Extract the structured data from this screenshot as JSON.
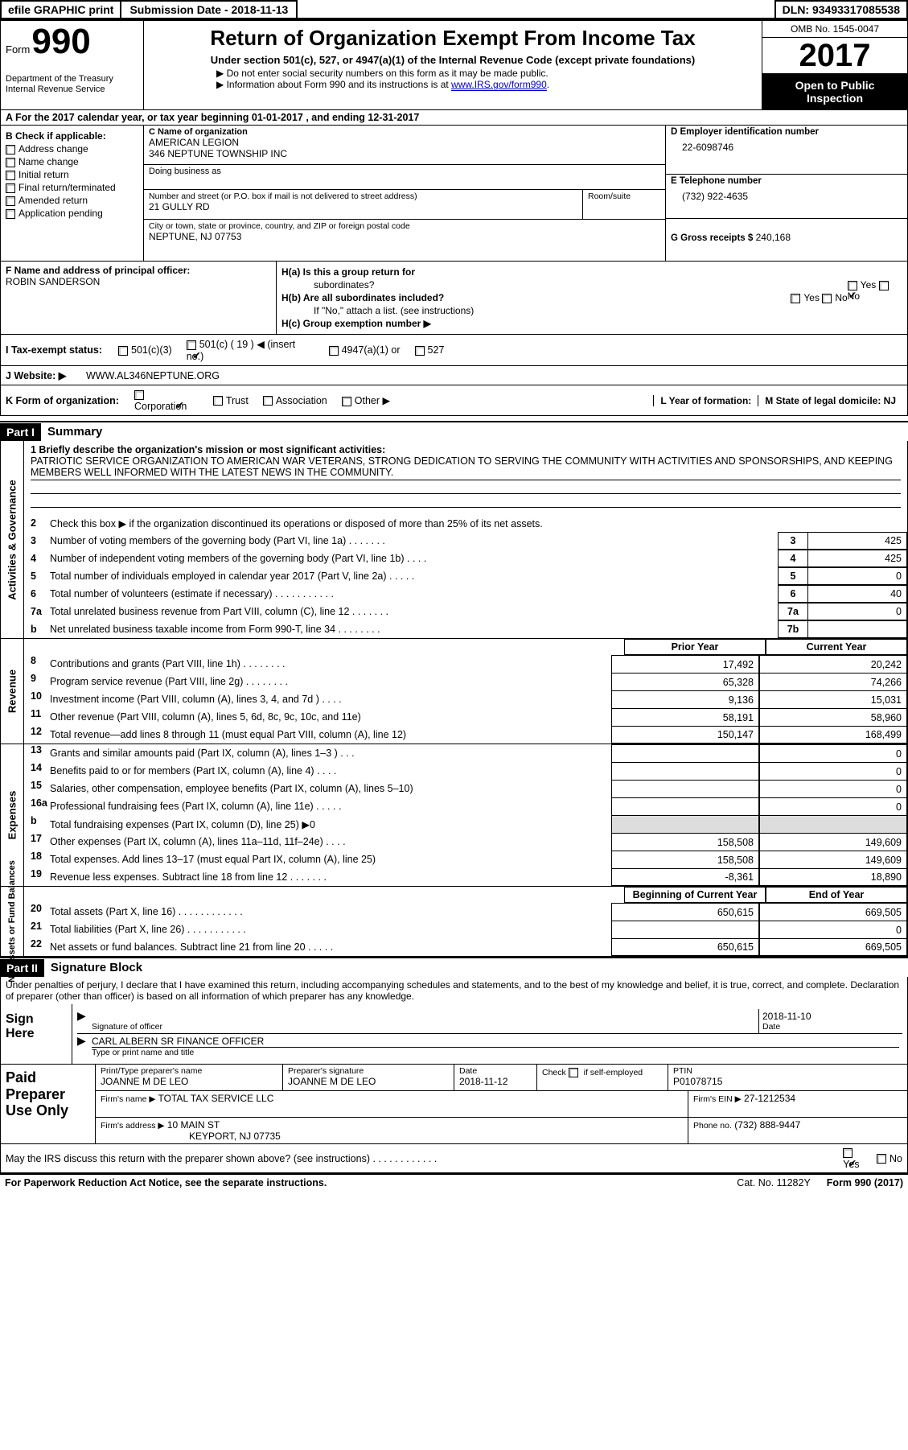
{
  "topbar": {
    "efile_btn": "efile GRAPHIC print",
    "submission": "Submission Date - 2018-11-13",
    "dln": "DLN: 93493317085538"
  },
  "header": {
    "form_word": "Form",
    "form_num": "990",
    "dept1": "Department of the Treasury",
    "dept2": "Internal Revenue Service",
    "title": "Return of Organization Exempt From Income Tax",
    "sub1": "Under section 501(c), 527, or 4947(a)(1) of the Internal Revenue Code (except private foundations)",
    "arrow1": "Do not enter social security numbers on this form as it may be made public.",
    "arrow2_pre": "Information about Form 990 and its instructions is at ",
    "arrow2_link": "www.IRS.gov/form990",
    "arrow2_post": ".",
    "omb": "OMB No. 1545-0047",
    "year": "2017",
    "open1": "Open to Public",
    "open2": "Inspection"
  },
  "line_a": "A  For the 2017 calendar year, or tax year beginning 01-01-2017    , and ending 12-31-2017",
  "section_b": {
    "heading": "B Check if applicable:",
    "opts": [
      "Address change",
      "Name change",
      "Initial return",
      "Final return/terminated",
      "Amended return",
      "Application pending"
    ]
  },
  "section_c": {
    "name_lbl": "C Name of organization",
    "name1": "AMERICAN LEGION",
    "name2": "346 NEPTUNE TOWNSHIP INC",
    "dba_lbl": "Doing business as",
    "street_lbl": "Number and street (or P.O. box if mail is not delivered to street address)",
    "room_lbl": "Room/suite",
    "street": "21 GULLY RD",
    "city_lbl": "City or town, state or province, country, and ZIP or foreign postal code",
    "city": "NEPTUNE, NJ  07753"
  },
  "section_d": {
    "ein_lbl": "D Employer identification number",
    "ein": "22-6098746",
    "tel_lbl": "E Telephone number",
    "tel": "(732) 922-4635",
    "gross_lbl": "G Gross receipts $",
    "gross": "240,168"
  },
  "section_f": {
    "lbl": "F Name and address of principal officer:",
    "name": "ROBIN SANDERSON"
  },
  "section_h": {
    "ha": "H(a)  Is this a group return for",
    "ha2": "subordinates?",
    "hb": "H(b)  Are all subordinates included?",
    "hb_note": "If \"No,\" attach a list. (see instructions)",
    "hc": "H(c)  Group exemption number ▶",
    "yes": "Yes",
    "no": "No"
  },
  "tax_status": {
    "lbl": "I   Tax-exempt status:",
    "o1": "501(c)(3)",
    "o2": "501(c) ( 19 ) ◀ (insert no.)",
    "o3": "4947(a)(1) or",
    "o4": "527"
  },
  "website": {
    "lbl": "J   Website: ▶",
    "val": "WWW.AL346NEPTUNE.ORG"
  },
  "korg": {
    "lbl": "K Form of organization:",
    "o1": "Corporation",
    "o2": "Trust",
    "o3": "Association",
    "o4": "Other ▶",
    "l_lbl": "L Year of formation:",
    "m_lbl": "M State of legal domicile: NJ"
  },
  "part1": {
    "label": "Part I",
    "title": "Summary",
    "side_act": "Activities & Governance",
    "side_rev": "Revenue",
    "side_exp": "Expenses",
    "side_net": "Net Assets or\nFund Balances",
    "l1_lbl": "1   Briefly describe the organization's mission or most significant activities:",
    "l1_text": "PATRIOTIC SERVICE ORGANIZATION TO AMERICAN WAR VETERANS, STRONG DEDICATION TO SERVING THE COMMUNITY WITH ACTIVITIES AND SPONSORSHIPS, AND KEEPING MEMBERS WELL INFORMED WITH THE LATEST NEWS IN THE COMMUNITY.",
    "l2": "Check this box ▶       if the organization discontinued its operations or disposed of more than 25% of its net assets.",
    "prior_hdr": "Prior Year",
    "current_hdr": "Current Year",
    "boy_hdr": "Beginning of Current Year",
    "eoy_hdr": "End of Year",
    "gov_lines": [
      {
        "n": "3",
        "t": "Number of voting members of the governing body (Part VI, line 1a)   .    .    .    .    .    .    .",
        "c": "3",
        "v": "425"
      },
      {
        "n": "4",
        "t": "Number of independent voting members of the governing body (Part VI, line 1b)   .    .    .    .",
        "c": "4",
        "v": "425"
      },
      {
        "n": "5",
        "t": "Total number of individuals employed in calendar year 2017 (Part V, line 2a)   .    .    .    .    .",
        "c": "5",
        "v": "0"
      },
      {
        "n": "6",
        "t": "Total number of volunteers (estimate if necessary)   .    .    .    .    .    .    .    .    .    .    .",
        "c": "6",
        "v": "40"
      },
      {
        "n": "7a",
        "t": "Total unrelated business revenue from Part VIII, column (C), line 12   .    .    .    .    .    .    .",
        "c": "7a",
        "v": "0"
      },
      {
        "n": "b",
        "t": "Net unrelated business taxable income from Form 990-T, line 34   .    .    .    .    .    .    .    .",
        "c": "7b",
        "v": ""
      }
    ],
    "rev_lines": [
      {
        "n": "8",
        "t": "Contributions and grants (Part VIII, line 1h)   .    .    .    .    .    .    .    .",
        "p": "17,492",
        "c": "20,242"
      },
      {
        "n": "9",
        "t": "Program service revenue (Part VIII, line 2g)   .    .    .    .    .    .    .    .",
        "p": "65,328",
        "c": "74,266"
      },
      {
        "n": "10",
        "t": "Investment income (Part VIII, column (A), lines 3, 4, and 7d )   .    .    .    .",
        "p": "9,136",
        "c": "15,031"
      },
      {
        "n": "11",
        "t": "Other revenue (Part VIII, column (A), lines 5, 6d, 8c, 9c, 10c, and 11e)",
        "p": "58,191",
        "c": "58,960"
      },
      {
        "n": "12",
        "t": "Total revenue—add lines 8 through 11 (must equal Part VIII, column (A), line 12)",
        "p": "150,147",
        "c": "168,499"
      }
    ],
    "exp_lines": [
      {
        "n": "13",
        "t": "Grants and similar amounts paid (Part IX, column (A), lines 1–3 )   .    .    .",
        "p": "",
        "c": "0"
      },
      {
        "n": "14",
        "t": "Benefits paid to or for members (Part IX, column (A), line 4)   .    .    .    .",
        "p": "",
        "c": "0"
      },
      {
        "n": "15",
        "t": "Salaries, other compensation, employee benefits (Part IX, column (A), lines 5–10)",
        "p": "",
        "c": "0"
      },
      {
        "n": "16a",
        "t": "Professional fundraising fees (Part IX, column (A), line 11e)   .    .    .    .    .",
        "p": "",
        "c": "0"
      },
      {
        "n": "b",
        "t": "Total fundraising expenses (Part IX, column (D), line 25) ▶0",
        "p": "__SHADE__",
        "c": "__SHADE__"
      },
      {
        "n": "17",
        "t": "Other expenses (Part IX, column (A), lines 11a–11d, 11f–24e)   .    .    .    .",
        "p": "158,508",
        "c": "149,609"
      },
      {
        "n": "18",
        "t": "Total expenses. Add lines 13–17 (must equal Part IX, column (A), line 25)",
        "p": "158,508",
        "c": "149,609"
      },
      {
        "n": "19",
        "t": "Revenue less expenses. Subtract line 18 from line 12 .    .    .    .    .    .    .",
        "p": "-8,361",
        "c": "18,890"
      }
    ],
    "net_lines": [
      {
        "n": "20",
        "t": "Total assets (Part X, line 16)   .    .    .    .    .    .    .    .    .    .    .    .",
        "p": "650,615",
        "c": "669,505"
      },
      {
        "n": "21",
        "t": "Total liabilities (Part X, line 26)   .    .    .    .    .    .    .    .    .    .    .",
        "p": "",
        "c": "0"
      },
      {
        "n": "22",
        "t": "Net assets or fund balances. Subtract line 21 from line 20   .    .    .    .    .",
        "p": "650,615",
        "c": "669,505"
      }
    ]
  },
  "part2": {
    "label": "Part II",
    "title": "Signature Block",
    "penalties": "Under penalties of perjury, I declare that I have examined this return, including accompanying schedules and statements, and to the best of my knowledge and belief, it is true, correct, and complete. Declaration of preparer (other than officer) is based on all information of which preparer has any knowledge.",
    "sign_here": "Sign\nHere",
    "sig_officer_lbl": "Signature of officer",
    "sig_date": "2018-11-10",
    "date_lbl": "Date",
    "officer_name": "CARL ALBERN SR FINANCE OFFICER",
    "officer_name_lbl": "Type or print name and title",
    "paid": "Paid\nPreparer\nUse Only",
    "prep_name_lbl": "Print/Type preparer's name",
    "prep_name": "JOANNE M DE LEO",
    "prep_sig_lbl": "Preparer's signature",
    "prep_sig": "JOANNE M DE LEO",
    "prep_date_lbl": "Date",
    "prep_date": "2018-11-12",
    "check_if": "Check         if self-employed",
    "ptin_lbl": "PTIN",
    "ptin": "P01078715",
    "firm_name_lbl": "Firm's name      ▶",
    "firm_name": "TOTAL TAX SERVICE LLC",
    "firm_ein_lbl": "Firm's EIN ▶",
    "firm_ein": "27-1212534",
    "firm_addr_lbl": "Firm's address ▶",
    "firm_addr1": "10 MAIN ST",
    "firm_addr2": "KEYPORT, NJ  07735",
    "phone_lbl": "Phone no.",
    "phone": "(732) 888-9447",
    "discuss": "May the IRS discuss this return with the preparer shown above? (see instructions)   .    .    .    .    .    .    .    .    .    .    .    .",
    "yes": "Yes",
    "no": "No"
  },
  "footer": {
    "left": "For Paperwork Reduction Act Notice, see the separate instructions.",
    "mid": "Cat. No. 11282Y",
    "right_pre": "Form ",
    "right_bold": "990",
    "right_post": " (2017)"
  }
}
